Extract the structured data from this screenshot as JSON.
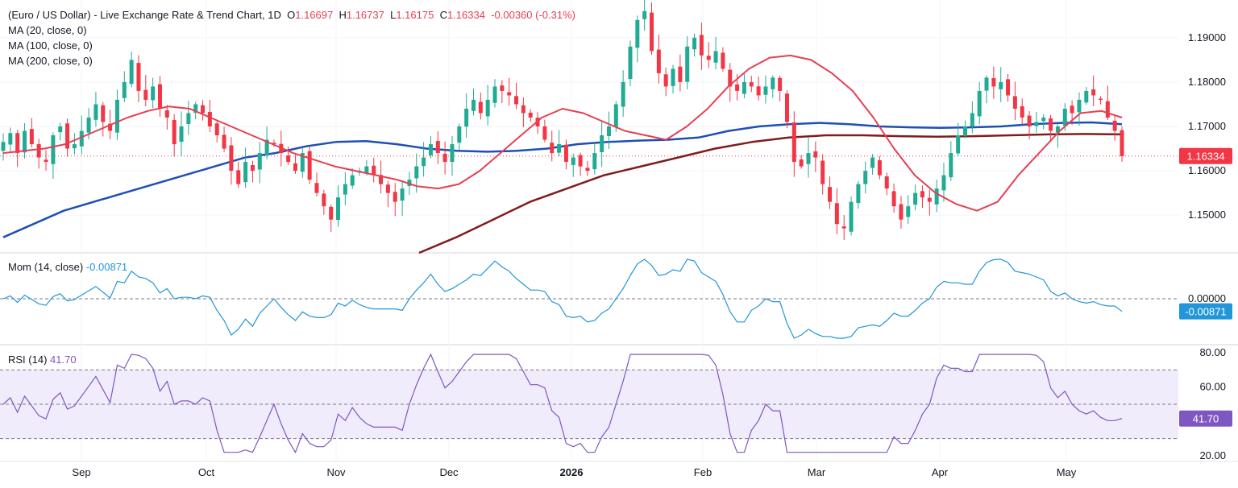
{
  "header": {
    "title": "(Euro / US Dollar) - Live Exchange Rate & Trend Chart, 1D",
    "o_label": "O",
    "o_value": "1.16697",
    "h_label": "H",
    "h_value": "1.16737",
    "l_label": "L",
    "l_value": "1.16175",
    "c_label": "C",
    "c_value": "1.16334",
    "change": "-0.00360 (-0.31%)"
  },
  "legend": {
    "ma20": "MA (20, close, 0)",
    "ma100": "MA (100, close, 0)",
    "ma200": "MA (200, close, 0)"
  },
  "momentum": {
    "label": "Mom (14, close)",
    "value": "-0.00871",
    "tag": "-0.00871"
  },
  "rsi": {
    "label": "RSI (14)",
    "value": "41.70",
    "tag": "41.70"
  },
  "price_tag": "1.16334",
  "colors": {
    "up": "#22ab94",
    "down": "#f23645",
    "ma20": "#e63f52",
    "ma100": "#1e4fb4",
    "ma200": "#7f1d1d",
    "mom": "#2196d8",
    "rsi": "#7e57c2",
    "rsi_band": "#f1ecfb"
  },
  "chart_data": [
    {
      "type": "candlestick",
      "title": "(Euro / US Dollar) - Live Exchange Rate & Trend Chart, 1D",
      "x_tick_labels": [
        "Sep",
        "Oct",
        "Nov",
        "Dec",
        "2026",
        "Feb",
        "Mar",
        "Apr",
        "May"
      ],
      "y_tick_labels": [
        "1.19000",
        "1.18000",
        "1.17000",
        "1.16000",
        "1.15000"
      ],
      "ylim": [
        1.1415,
        1.1985
      ],
      "last_close": 1.16334,
      "close_series_approx": [
        1.1665,
        1.1685,
        1.164,
        1.169,
        1.166,
        1.163,
        1.162,
        1.168,
        1.17,
        1.165,
        1.166,
        1.169,
        1.172,
        1.175,
        1.171,
        1.169,
        1.176,
        1.18,
        1.185,
        1.178,
        1.176,
        1.179,
        1.174,
        1.172,
        1.166,
        1.17,
        1.173,
        1.175,
        1.173,
        1.17,
        1.168,
        1.165,
        1.16,
        1.157,
        1.162,
        1.16,
        1.164,
        1.167,
        1.166,
        1.164,
        1.162,
        1.16,
        1.164,
        1.158,
        1.155,
        1.152,
        1.149,
        1.154,
        1.157,
        1.159,
        1.16,
        1.161,
        1.159,
        1.157,
        1.155,
        1.153,
        1.156,
        1.158,
        1.161,
        1.163,
        1.166,
        1.164,
        1.162,
        1.166,
        1.17,
        1.174,
        1.176,
        1.173,
        1.176,
        1.179,
        1.178,
        1.177,
        1.175,
        1.173,
        1.172,
        1.17,
        1.167,
        1.164,
        1.166,
        1.162,
        1.163,
        1.161,
        1.16,
        1.164,
        1.168,
        1.17,
        1.175,
        1.18,
        1.188,
        1.194,
        1.196,
        1.187,
        1.182,
        1.179,
        1.183,
        1.18,
        1.188,
        1.19,
        1.186,
        1.185,
        1.187,
        1.183,
        1.179,
        1.178,
        1.18,
        1.179,
        1.177,
        1.179,
        1.181,
        1.178,
        1.171,
        1.162,
        1.161,
        1.164,
        1.163,
        1.157,
        1.153,
        1.148,
        1.147,
        1.153,
        1.157,
        1.16,
        1.163,
        1.159,
        1.156,
        1.152,
        1.149,
        1.152,
        1.155,
        1.154,
        1.153,
        1.156,
        1.159,
        1.164,
        1.168,
        1.17,
        1.173,
        1.178,
        1.181,
        1.179,
        1.18,
        1.177,
        1.174,
        1.172,
        1.17,
        1.171,
        1.172,
        1.169,
        1.17,
        1.174,
        1.173,
        1.176,
        1.178,
        1.177,
        1.176,
        1.172,
        1.169,
        1.1633
      ],
      "series_lines": [
        {
          "name": "MA (20, close, 0)",
          "values_approx": [
            1.164,
            1.1645,
            1.165,
            1.166,
            1.168,
            1.17,
            1.172,
            1.1735,
            1.1745,
            1.174,
            1.172,
            1.17,
            1.168,
            1.166,
            1.164,
            1.1625,
            1.161,
            1.16,
            1.159,
            1.158,
            1.1565,
            1.156,
            1.157,
            1.16,
            1.164,
            1.168,
            1.172,
            1.174,
            1.173,
            1.171,
            1.169,
            1.168,
            1.167,
            1.17,
            1.174,
            1.179,
            1.183,
            1.1855,
            1.186,
            1.185,
            1.182,
            1.178,
            1.172,
            1.165,
            1.159,
            1.155,
            1.1525,
            1.151,
            1.153,
            1.159,
            1.164,
            1.169,
            1.173,
            1.1735,
            1.172
          ]
        },
        {
          "name": "MA (100, close, 0)",
          "values_approx": [
            1.145,
            1.148,
            1.151,
            1.153,
            1.155,
            1.157,
            1.159,
            1.161,
            1.163,
            1.164,
            1.1655,
            1.1665,
            1.1667,
            1.166,
            1.165,
            1.1645,
            1.1643,
            1.1645,
            1.165,
            1.166,
            1.1665,
            1.1668,
            1.167,
            1.1675,
            1.169,
            1.17,
            1.1705,
            1.1708,
            1.1705,
            1.17,
            1.1698,
            1.1697,
            1.1698,
            1.17,
            1.1705,
            1.1708,
            1.1709,
            1.1705
          ]
        },
        {
          "name": "MA (200, close, 0)",
          "values_approx": [
            1.1415,
            1.145,
            1.149,
            1.153,
            1.156,
            1.159,
            1.161,
            1.163,
            1.165,
            1.1665,
            1.1675,
            1.168,
            1.168,
            1.1678,
            1.1677,
            1.1678,
            1.168,
            1.1682,
            1.1683,
            1.1682
          ]
        }
      ]
    },
    {
      "type": "line",
      "title": "Mom (14, close)",
      "y_tick_labels": [
        "0.00000"
      ],
      "series": [
        {
          "name": "Mom (14, close)",
          "last_value": -0.00871
        }
      ]
    },
    {
      "type": "line",
      "title": "RSI (14)",
      "y_tick_labels": [
        "80.00",
        "60.00",
        "20.00"
      ],
      "ylim": [
        20,
        80
      ],
      "band": [
        30,
        70
      ],
      "series": [
        {
          "name": "RSI (14)",
          "last_value": 41.7
        }
      ]
    }
  ]
}
